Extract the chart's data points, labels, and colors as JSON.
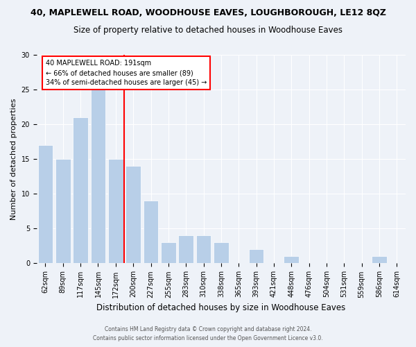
{
  "title": "40, MAPLEWELL ROAD, WOODHOUSE EAVES, LOUGHBOROUGH, LE12 8QZ",
  "subtitle": "Size of property relative to detached houses in Woodhouse Eaves",
  "xlabel": "Distribution of detached houses by size in Woodhouse Eaves",
  "ylabel": "Number of detached properties",
  "footnote1": "Contains HM Land Registry data © Crown copyright and database right 2024.",
  "footnote2": "Contains public sector information licensed under the Open Government Licence v3.0.",
  "bar_labels": [
    "62sqm",
    "89sqm",
    "117sqm",
    "145sqm",
    "172sqm",
    "200sqm",
    "227sqm",
    "255sqm",
    "283sqm",
    "310sqm",
    "338sqm",
    "365sqm",
    "393sqm",
    "421sqm",
    "448sqm",
    "476sqm",
    "504sqm",
    "531sqm",
    "559sqm",
    "586sqm",
    "614sqm"
  ],
  "bar_values": [
    17,
    15,
    21,
    25,
    15,
    14,
    9,
    3,
    4,
    4,
    3,
    0,
    2,
    0,
    1,
    0,
    0,
    0,
    0,
    1,
    0
  ],
  "bar_color": "#b8cfe8",
  "bar_edge_color": "#ffffff",
  "vline_x_index": 4.5,
  "vline_color": "red",
  "annotation_text": "40 MAPLEWELL ROAD: 191sqm\n← 66% of detached houses are smaller (89)\n34% of semi-detached houses are larger (45) →",
  "annotation_box_color": "white",
  "annotation_box_edge": "red",
  "ylim": [
    0,
    30
  ],
  "yticks": [
    0,
    5,
    10,
    15,
    20,
    25,
    30
  ],
  "background_color": "#eef2f8",
  "plot_bg_color": "#eef2f8",
  "grid_color": "#ffffff",
  "title_fontsize": 9,
  "subtitle_fontsize": 8.5,
  "xlabel_fontsize": 8.5,
  "ylabel_fontsize": 8,
  "tick_fontsize": 7,
  "annotation_fontsize": 7
}
